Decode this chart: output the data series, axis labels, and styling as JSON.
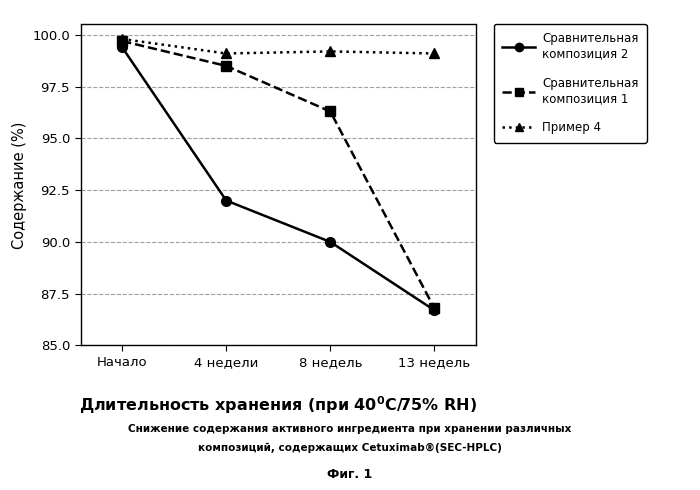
{
  "x_labels": [
    "Начало",
    "4 недели",
    "8 недель",
    "13 недель"
  ],
  "x_positions": [
    0,
    1,
    2,
    3
  ],
  "series": [
    {
      "name": "Сравнительная\nкомпозиция 2",
      "values": [
        99.4,
        92.0,
        90.0,
        86.7
      ],
      "color": "#000000",
      "linestyle": "-",
      "marker": "o",
      "linewidth": 1.8,
      "markersize": 7
    },
    {
      "name": "Сравнительная\nкомпозиция 1",
      "values": [
        99.7,
        98.5,
        96.3,
        86.8
      ],
      "color": "#000000",
      "linestyle": "--",
      "marker": "s",
      "linewidth": 1.8,
      "markersize": 7
    },
    {
      "name": "Пример 4",
      "values": [
        99.8,
        99.1,
        99.2,
        99.1
      ],
      "color": "#000000",
      "linestyle": ":",
      "marker": "^",
      "linewidth": 1.8,
      "markersize": 7
    }
  ],
  "ylabel": "Содержание (%)",
  "xlabel_normal": "Длительность хранения (при 40",
  "xlabel_super": "0",
  "xlabel_after": "C/75% RH)",
  "ylim": [
    85,
    100.5
  ],
  "yticks": [
    85,
    87.5,
    90,
    92.5,
    95,
    97.5,
    100
  ],
  "title1": "Снижение содержания активного ингредиента при хранении различных",
  "title2": "композиций, содержащих Cetuximab®(SEC-HPLC)",
  "fig_label": "Фиг. 1",
  "background_color": "#ffffff"
}
